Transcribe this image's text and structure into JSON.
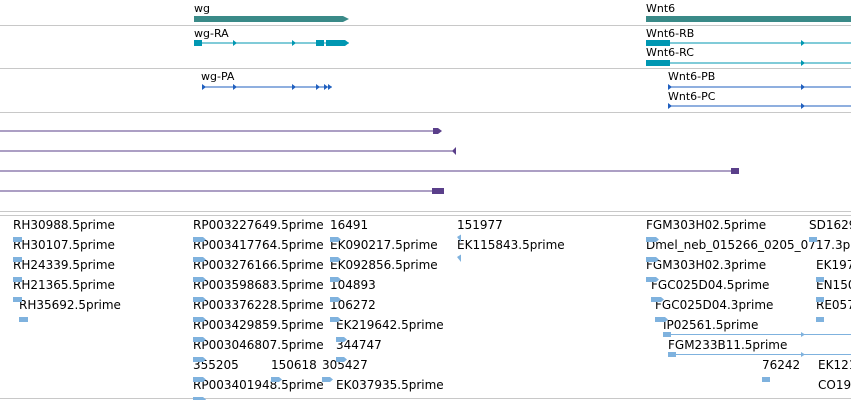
{
  "gene_track": {
    "genes": [
      {
        "name": "wg"
      },
      {
        "name": "Wnt6"
      }
    ]
  },
  "transcript_track": {
    "transcripts": [
      {
        "name": "wg-RA"
      },
      {
        "name": "Wnt6-RB"
      },
      {
        "name": "Wnt6-RC"
      }
    ]
  },
  "protein_track": {
    "proteins": [
      {
        "name": "wg-PA"
      },
      {
        "name": "Wnt6-PB"
      },
      {
        "name": "Wnt6-PC"
      }
    ]
  },
  "est_track": {
    "col1": [
      "RH30988.5prime",
      "RH30107.5prime",
      "RH24339.5prime",
      "RH21365.5prime",
      "RH35692.5prime"
    ],
    "col2": [
      "RP003227649.5prime",
      "RP003417764.5prime",
      "RP003276166.5prime",
      "RP003598683.5prime",
      "RP003376228.5prime",
      "RP003429859.5prime",
      "RP003046807.5prime",
      "355205",
      "RP003401948.5prime"
    ],
    "col3": [
      "16491",
      "EK090217.5prime",
      "EK092856.5prime",
      "104893",
      "106272",
      "EK219642.5prime",
      "344747",
      "305427",
      "EK037935.5prime"
    ],
    "col3b": [
      "150618"
    ],
    "col4": [
      "151977",
      "EK115843.5prime"
    ],
    "col5": [
      "FGM303H02.5prime",
      "Dmel_neb_015266_0205_0717.3p",
      "FGM303H02.3prime",
      "FGC025D04.5prime",
      "FGC025D04.3prime",
      "IP02561.5prime",
      "FGM233B11.5prime"
    ],
    "col5b": [
      "76242"
    ],
    "col6": [
      "SD1629",
      "EK197",
      "EN150",
      "RE057",
      "EK121",
      "CO19"
    ]
  },
  "colors": {
    "gene": "#3a8a88",
    "transcript": "#0097b2",
    "protein": "#1f5fbf",
    "alignment": "#5a3f8a",
    "est": "#7fb2de",
    "separator": "#c8c8c8"
  }
}
